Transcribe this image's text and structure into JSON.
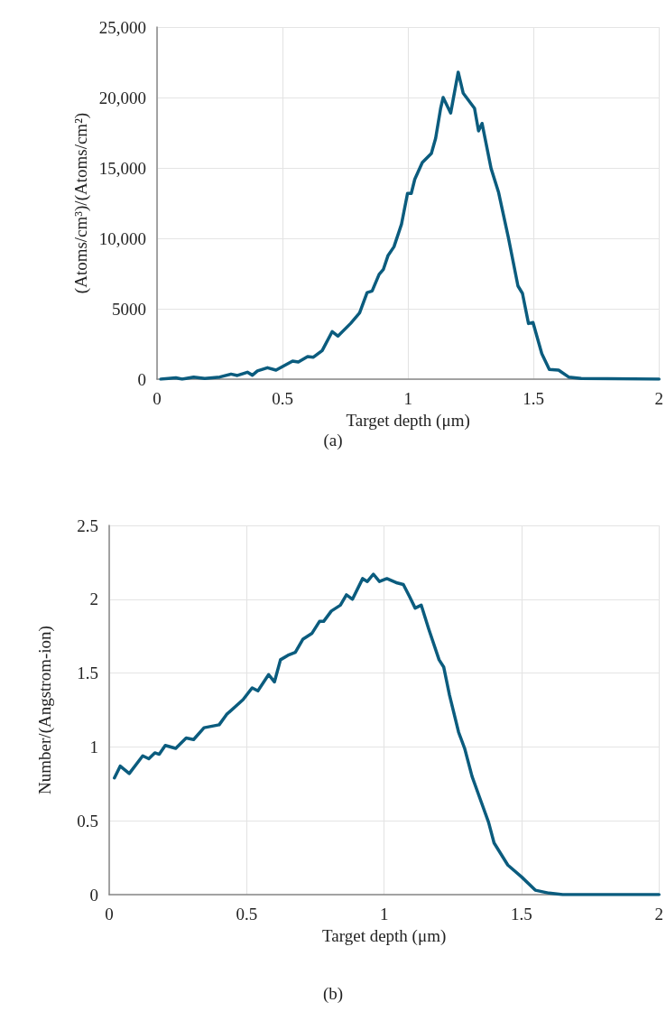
{
  "chart_data": [
    {
      "type": "line",
      "xlabel": "Target depth (μm)",
      "ylabel": "(Atoms/cm³)/(Atoms/cm²)",
      "annotations": [
        "(a)"
      ],
      "xlim": [
        0,
        2
      ],
      "ylim": [
        0,
        25000
      ],
      "xticks": [
        0,
        0.5,
        1,
        1.5,
        2
      ],
      "yticks": [
        0,
        5000,
        {
          "value": 10000,
          "label": "10,000"
        },
        {
          "value": 15000,
          "label": "15,000"
        },
        {
          "value": 20000,
          "label": "20,000"
        },
        {
          "value": 25000,
          "label": "25,000"
        }
      ],
      "grid": true,
      "marker": "none",
      "line_style": "solid",
      "series": [
        {
          "color": "#0b5c7e",
          "x": [
            0.015,
            0.075,
            0.1,
            0.146,
            0.19,
            0.25,
            0.295,
            0.32,
            0.36,
            0.38,
            0.4,
            0.44,
            0.474,
            0.54,
            0.563,
            0.6,
            0.623,
            0.658,
            0.698,
            0.721,
            0.771,
            0.807,
            0.837,
            0.857,
            0.885,
            0.902,
            0.92,
            0.944,
            0.974,
            0.998,
            1.013,
            1.027,
            1.057,
            1.093,
            1.11,
            1.13,
            1.14,
            1.17,
            1.2,
            1.22,
            1.265,
            1.281,
            1.295,
            1.331,
            1.361,
            1.4,
            1.438,
            1.456,
            1.48,
            1.498,
            1.533,
            1.563,
            1.6,
            1.64,
            1.69,
            2
          ],
          "values": [
            0,
            100,
            0,
            150,
            50,
            150,
            360,
            260,
            490,
            280,
            580,
            810,
            640,
            1280,
            1220,
            1600,
            1560,
            2030,
            3380,
            3060,
            3950,
            4700,
            6150,
            6260,
            7440,
            7800,
            8760,
            9400,
            11000,
            13190,
            13190,
            14200,
            15380,
            16030,
            17100,
            19230,
            20000,
            18900,
            21800,
            20300,
            19230,
            17630,
            18160,
            14960,
            13250,
            10040,
            6620,
            6090,
            3950,
            4020,
            1810,
            690,
            640,
            150,
            50,
            0
          ]
        }
      ]
    },
    {
      "type": "line",
      "xlabel": "Target depth (μm)",
      "ylabel": "Number/(Angstrom-ion)",
      "annotations": [
        "(b)"
      ],
      "xlim": [
        0,
        2
      ],
      "ylim": [
        0,
        2.5
      ],
      "xticks": [
        0,
        0.5,
        1,
        1.5,
        2
      ],
      "yticks": [
        0,
        0.5,
        1,
        1.5,
        2,
        2.5
      ],
      "grid": true,
      "marker": "none",
      "line_style": "solid",
      "series": [
        {
          "color": "#0b5c7e",
          "x": [
            0.019,
            0.04,
            0.073,
            0.122,
            0.144,
            0.166,
            0.182,
            0.204,
            0.242,
            0.28,
            0.307,
            0.345,
            0.4,
            0.427,
            0.487,
            0.52,
            0.541,
            0.58,
            0.601,
            0.623,
            0.65,
            0.677,
            0.705,
            0.738,
            0.765,
            0.78,
            0.808,
            0.841,
            0.863,
            0.885,
            0.922,
            0.939,
            0.961,
            0.983,
            1.01,
            1.048,
            1.07,
            1.092,
            1.113,
            1.135,
            1.162,
            1.2,
            1.217,
            1.238,
            1.271,
            1.293,
            1.32,
            1.347,
            1.38,
            1.4,
            1.45,
            1.5,
            1.55,
            1.6,
            1.65,
            2
          ],
          "values": [
            0.79,
            0.87,
            0.82,
            0.94,
            0.92,
            0.96,
            0.95,
            1.01,
            0.99,
            1.06,
            1.05,
            1.13,
            1.15,
            1.22,
            1.32,
            1.4,
            1.38,
            1.49,
            1.44,
            1.59,
            1.62,
            1.64,
            1.73,
            1.77,
            1.85,
            1.85,
            1.92,
            1.96,
            2.03,
            2.0,
            2.14,
            2.12,
            2.17,
            2.12,
            2.14,
            2.11,
            2.1,
            2.02,
            1.94,
            1.96,
            1.8,
            1.59,
            1.54,
            1.35,
            1.1,
            0.99,
            0.8,
            0.66,
            0.49,
            0.35,
            0.2,
            0.12,
            0.03,
            0.01,
            0,
            0
          ]
        }
      ]
    }
  ]
}
